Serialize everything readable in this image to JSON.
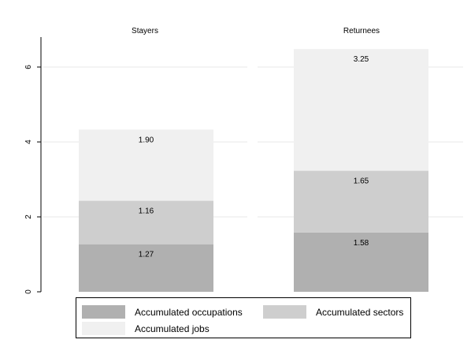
{
  "chart_data": {
    "type": "bar",
    "stacked": true,
    "ylim": [
      0,
      6.8
    ],
    "yticks": [
      "0",
      "2",
      "4",
      "6"
    ],
    "ytick_values": [
      0,
      2,
      4,
      6
    ],
    "grid": true,
    "legend_position": "bottom",
    "panels": [
      {
        "title": "Stayers",
        "values": [
          1.27,
          1.16,
          1.9
        ],
        "labels": [
          "1.27",
          "1.16",
          "1.90"
        ]
      },
      {
        "title": "Returnees",
        "values": [
          1.58,
          1.65,
          3.25
        ],
        "labels": [
          "1.58",
          "1.65",
          "3.25"
        ]
      }
    ],
    "series": [
      {
        "name": "Accumulated occupations",
        "color": "#b0b0b0"
      },
      {
        "name": "Accumulated sectors",
        "color": "#cecece"
      },
      {
        "name": "Accumulated jobs",
        "color": "#f0f0f0"
      }
    ]
  }
}
